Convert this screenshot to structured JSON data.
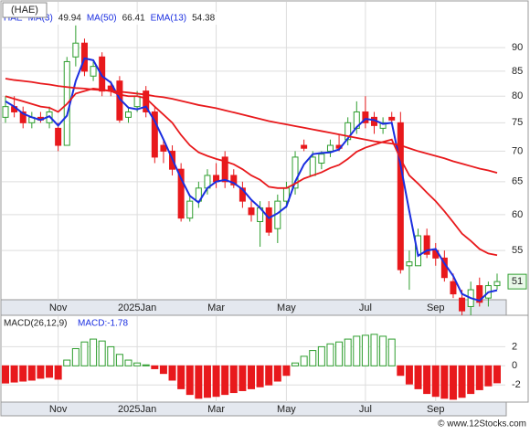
{
  "chart_data": [
    {
      "type": "candlestick",
      "title": "(HAE)",
      "ticker": "HAE",
      "log_scale": true,
      "grid": true,
      "ylim": [
        48.8,
        100.6
      ],
      "yticks": [
        55,
        60,
        65,
        70,
        75,
        80,
        85,
        90
      ],
      "last_price_label": "51",
      "date_ticks": [
        {
          "value": 6,
          "label": "Nov"
        },
        {
          "value": 15,
          "label": "2025Jan"
        },
        {
          "value": 24,
          "label": "Mar"
        },
        {
          "value": 32,
          "label": "May"
        },
        {
          "value": 41,
          "label": "Jul"
        },
        {
          "value": 49,
          "label": "Sep"
        }
      ],
      "up_color": "#2e9e2e",
      "down_color": "#e8191c",
      "open": [
        76,
        78,
        77,
        75,
        76,
        75,
        74,
        71,
        88,
        91,
        84,
        88,
        82,
        83,
        76,
        78,
        81,
        77,
        71,
        70,
        67,
        59.5,
        62,
        64,
        66,
        69,
        66,
        64,
        61,
        59,
        61,
        58,
        62,
        64,
        71,
        66,
        68,
        70,
        71,
        72,
        74,
        77,
        76,
        74,
        76,
        75,
        53,
        53,
        57,
        55,
        54,
        51,
        49,
        48,
        50.5,
        49,
        50.5
      ],
      "high": [
        80,
        80,
        78,
        77,
        77,
        78,
        75,
        88,
        95,
        92,
        87,
        89,
        83,
        84,
        78,
        81,
        82,
        78,
        72,
        71,
        68,
        63,
        65,
        67,
        68,
        70,
        67,
        65,
        62,
        62,
        62,
        63,
        65,
        70,
        72,
        70,
        70,
        72,
        73,
        76,
        79,
        80,
        77,
        76,
        77,
        77,
        55,
        58,
        58,
        56,
        55,
        52,
        50,
        51,
        51.5,
        51,
        52
      ],
      "low": [
        75,
        76,
        74,
        74,
        75,
        74,
        70,
        71,
        86,
        84,
        83,
        80,
        80,
        75,
        75,
        77,
        76,
        68,
        68,
        66,
        59,
        59,
        61,
        63,
        64,
        64,
        64,
        61,
        59,
        55.5,
        57,
        56,
        61,
        63,
        70,
        66,
        67,
        69,
        70,
        71,
        73,
        74,
        73,
        73,
        75,
        52,
        50,
        53,
        54,
        53,
        51,
        49,
        47,
        47,
        48,
        48,
        50
      ],
      "close": [
        78,
        77,
        75,
        76,
        75.5,
        77,
        71,
        87,
        91,
        85,
        86,
        81,
        81,
        75.5,
        77,
        80,
        77,
        69,
        70,
        67,
        59.5,
        62,
        64,
        66,
        65,
        65,
        64.5,
        62,
        60,
        61,
        57.5,
        62,
        64,
        69,
        70.5,
        69,
        69.5,
        71,
        70.5,
        75,
        77,
        75,
        74.5,
        75,
        75.5,
        52.5,
        53.5,
        57,
        54.5,
        54,
        51.5,
        49.5,
        47.5,
        50,
        48.5,
        50.5,
        51
      ],
      "series": [
        {
          "name": "MA(3)",
          "color": "#1a2ee0",
          "values": [
            79,
            78,
            76.7,
            76,
            75.5,
            76.2,
            74.5,
            76.3,
            83,
            87.7,
            87.3,
            84,
            82.7,
            79.5,
            77.8,
            77.5,
            78,
            75.3,
            72,
            68.7,
            65.5,
            62.8,
            61.8,
            64,
            65,
            65.3,
            64.8,
            63.8,
            62.2,
            61,
            59.5,
            60.2,
            61.2,
            65,
            67.8,
            69.5,
            69.7,
            69.8,
            70.3,
            72.2,
            74.2,
            75.7,
            75.5,
            74.8,
            75,
            67.7,
            60.5,
            54.3,
            55,
            55.2,
            53.3,
            51.7,
            49.5,
            49,
            48.7,
            49.7,
            49.94
          ]
        },
        {
          "name": "MA(50)",
          "color": "#e8191c",
          "values": [
            83.5,
            83.2,
            83,
            82.8,
            82.5,
            82.3,
            82,
            81.8,
            81.6,
            81.5,
            81.3,
            81.2,
            81,
            80.9,
            80.7,
            80.5,
            80.3,
            80,
            79.8,
            79.5,
            79.1,
            78.7,
            78.3,
            78,
            77.7,
            77.3,
            76.9,
            76.5,
            76.1,
            75.7,
            75.3,
            75,
            74.7,
            74.4,
            74.1,
            73.8,
            73.5,
            73.2,
            72.9,
            72.6,
            72.3,
            72,
            71.7,
            71.5,
            71.3,
            71,
            70.5,
            70,
            69.6,
            69.2,
            68.8,
            68.3,
            67.9,
            67.5,
            67.1,
            66.8,
            66.41
          ]
        },
        {
          "name": "EMA(13)",
          "color": "#e8191c",
          "values": [
            80,
            79.5,
            79,
            78.5,
            78,
            77.8,
            77,
            78.5,
            80.5,
            81,
            81.5,
            81.3,
            81,
            80.3,
            80,
            80,
            79.6,
            78,
            76.5,
            75,
            72.8,
            71,
            69.8,
            69.2,
            68.7,
            68.3,
            67.8,
            67,
            66,
            65.3,
            64.2,
            64,
            64,
            64.7,
            65.5,
            66,
            66.5,
            67.2,
            67.7,
            68.7,
            69.9,
            70.6,
            71.1,
            71.6,
            72,
            68.7,
            66,
            64.7,
            63.3,
            62,
            60.5,
            58.9,
            57.3,
            56.3,
            55.2,
            54.6,
            54.38
          ]
        }
      ]
    },
    {
      "type": "bar",
      "title": "MACD(26,12,9)",
      "value_label": "MACD:-1.78",
      "ylim": [
        -3.8,
        5.2
      ],
      "yticks": [
        -2,
        0,
        2
      ],
      "pos_color": "#2e9e2e",
      "neg_color": "#e8191c",
      "values": [
        -1.8,
        -1.7,
        -1.6,
        -1.5,
        -1.3,
        -1.2,
        -1.4,
        0.6,
        1.8,
        2.5,
        2.8,
        2.6,
        2,
        1.2,
        0.6,
        0.3,
        0.1,
        -0.3,
        -0.8,
        -1.5,
        -2.4,
        -3,
        -3.4,
        -3.3,
        -3.2,
        -3,
        -2.8,
        -2.6,
        -2.4,
        -2.2,
        -2,
        -1.6,
        -1,
        0.3,
        1,
        1.6,
        2,
        2.3,
        2.5,
        2.8,
        3.1,
        3.2,
        3.3,
        3.1,
        2.8,
        -1,
        -1.9,
        -2.4,
        -2.9,
        -3.2,
        -3.4,
        -3.5,
        -3.3,
        -2.9,
        -2.5,
        -2.1,
        -1.78
      ]
    }
  ],
  "footer": "© www.12Stocks.com"
}
